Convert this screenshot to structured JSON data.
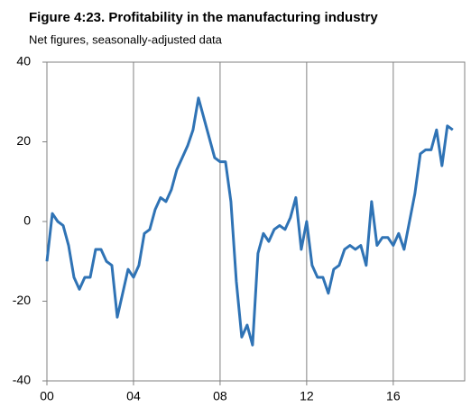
{
  "chart_data": {
    "type": "line",
    "title": "Figure 4:23.  Profitability in the manufacturing industry",
    "subtitle": "Net figures, seasonally-adjusted data",
    "x": [
      2000,
      2000.25,
      2000.5,
      2000.75,
      2001,
      2001.25,
      2001.5,
      2001.75,
      2002,
      2002.25,
      2002.5,
      2002.75,
      2003,
      2003.25,
      2003.5,
      2003.75,
      2004,
      2004.25,
      2004.5,
      2004.75,
      2005,
      2005.25,
      2005.5,
      2005.75,
      2006,
      2006.25,
      2006.5,
      2006.75,
      2007,
      2007.25,
      2007.5,
      2007.75,
      2008,
      2008.25,
      2008.5,
      2008.75,
      2009,
      2009.25,
      2009.5,
      2009.75,
      2010,
      2010.25,
      2010.5,
      2010.75,
      2011,
      2011.25,
      2011.5,
      2011.75,
      2012,
      2012.25,
      2012.5,
      2012.75,
      2013,
      2013.25,
      2013.5,
      2013.75,
      2014,
      2014.25,
      2014.5,
      2014.75,
      2015,
      2015.25,
      2015.5,
      2015.75,
      2016,
      2016.25,
      2016.5,
      2016.75,
      2017,
      2017.25,
      2017.5,
      2017.75,
      2018,
      2018.25,
      2018.5,
      2018.75
    ],
    "series": [
      {
        "name": null,
        "color": "#2f73b5",
        "values": [
          -10,
          2,
          0,
          -1,
          -6,
          -14,
          -17,
          -14,
          -14,
          -7,
          -7,
          -10,
          -11,
          -24,
          -18,
          -12,
          -14,
          -11,
          -3,
          -2,
          3,
          6,
          5,
          8,
          13,
          16,
          19,
          23,
          31,
          26,
          21,
          16,
          15,
          15,
          5,
          -15,
          -29,
          -26,
          -31,
          -8,
          -3,
          -5,
          -2,
          -1,
          -2,
          1,
          6,
          -7,
          0,
          -11,
          -14,
          -14,
          -18,
          -12,
          -11,
          -7,
          -6,
          -7,
          -6,
          -11,
          5,
          -6,
          -4,
          -4,
          -6,
          -3,
          -7,
          0,
          7,
          17,
          18,
          18,
          23,
          14,
          24,
          23
        ]
      }
    ],
    "xlim": [
      2000,
      2019.3
    ],
    "xticks": [
      {
        "value": 2000,
        "label": "00"
      },
      {
        "value": 2004,
        "label": "04"
      },
      {
        "value": 2008,
        "label": "08"
      },
      {
        "value": 2012,
        "label": "12"
      },
      {
        "value": 2016,
        "label": "16"
      }
    ],
    "ylim": [
      -40,
      40
    ],
    "yticks": [
      -40,
      -20,
      0,
      20,
      40
    ],
    "grid": "x"
  }
}
